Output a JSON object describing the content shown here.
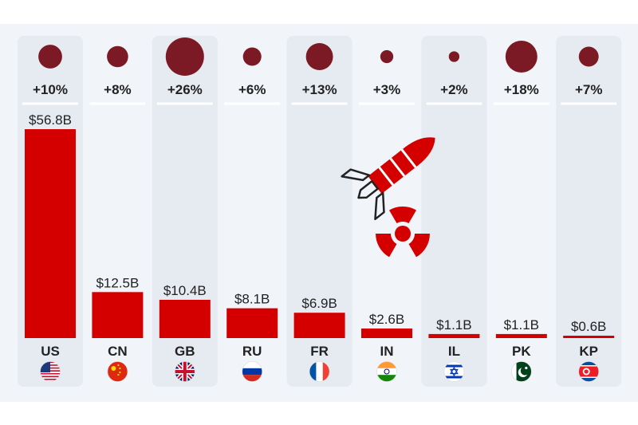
{
  "chart_data": {
    "type": "bar",
    "categories": [
      "US",
      "CN",
      "GB",
      "RU",
      "FR",
      "IN",
      "IL",
      "PK",
      "KP"
    ],
    "values": [
      56.8,
      12.5,
      10.4,
      8.1,
      6.9,
      2.6,
      1.1,
      1.1,
      0.6
    ],
    "value_labels": [
      "$56.8B",
      "$12.5B",
      "$10.4B",
      "$8.1B",
      "$6.9B",
      "$2.6B",
      "$1.1B",
      "$1.1B",
      "$0.6B"
    ],
    "change": [
      10,
      8,
      26,
      6,
      13,
      3,
      2,
      18,
      7
    ],
    "change_labels": [
      "+10%",
      "+8%",
      "+26%",
      "+6%",
      "+13%",
      "+3%",
      "+2%",
      "+18%",
      "+7%"
    ],
    "flags": [
      "us-flag-icon",
      "cn-flag-icon",
      "gb-flag-icon",
      "ru-flag-icon",
      "fr-flag-icon",
      "in-flag-icon",
      "il-flag-icon",
      "pk-flag-icon",
      "kp-flag-icon"
    ],
    "ylim": [
      0,
      56.8
    ],
    "grid": false,
    "colors": {
      "bar": "#d40000",
      "bubble": "#7b1a24",
      "column_bg": "#e6ebf1",
      "band_bg": "#f1f4f8"
    },
    "decoration": [
      "missile-icon",
      "radiation-icon"
    ]
  }
}
